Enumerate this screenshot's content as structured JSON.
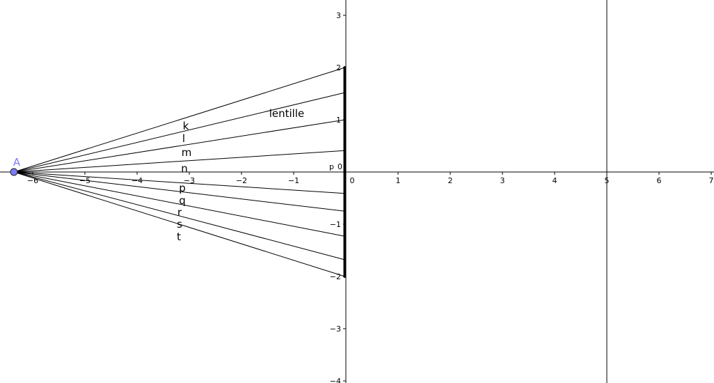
{
  "graph": {
    "x_range": [
      -6.63,
      7.05
    ],
    "y_range": [
      -4.04,
      3.29
    ],
    "x_ticks": [
      -6,
      -5,
      -4,
      -3,
      -2,
      -1,
      0,
      1,
      2,
      3,
      4,
      5,
      6,
      7
    ],
    "y_ticks": [
      -4,
      -3,
      -2,
      -1,
      1,
      2,
      3
    ],
    "point_A": {
      "label": "A",
      "x": -6.36,
      "y": 0,
      "color": "#7b7bff"
    },
    "lens": {
      "label": "lentille",
      "x": -0.02,
      "y_from": -2,
      "y_to": 2
    },
    "vertical_line_x": 5,
    "rays": [
      {
        "name": "k",
        "y_end": 2
      },
      {
        "name": "l",
        "y_end": 1.52
      },
      {
        "name": "m",
        "y_end": 1.0
      },
      {
        "name": "n",
        "y_end": 0.41
      },
      {
        "name": "p",
        "y_end": -0.41
      },
      {
        "name": "q",
        "y_end": -0.75
      },
      {
        "name": "r",
        "y_end": -1.23
      },
      {
        "name": "s",
        "y_end": -1.68
      },
      {
        "name": "t",
        "y_end": -2
      }
    ],
    "extra_label": "p"
  }
}
